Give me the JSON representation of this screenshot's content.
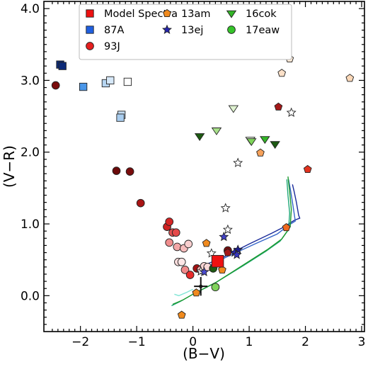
{
  "chart_data": {
    "type": "scatter",
    "xlabel": "(B−V)",
    "ylabel": "(V−R)",
    "xlim": [
      -2.65,
      3.05
    ],
    "ylim": [
      -0.5,
      4.1
    ],
    "xticks": [
      -2,
      -1,
      0,
      1,
      2,
      3
    ],
    "xtick_labels": [
      "−2",
      "−1",
      "0",
      "1",
      "2",
      "3"
    ],
    "yticks": [
      0.0,
      1.0,
      2.0,
      3.0,
      4.0
    ],
    "ytick_labels": [
      "0.0",
      "1.0",
      "2.0",
      "3.0",
      "4.0"
    ],
    "grid": false,
    "legend_position": "top-center",
    "legend": [
      {
        "label": "Model Spectra",
        "marker": "square",
        "color": "#ee1111"
      },
      {
        "label": "13am",
        "marker": "pentagon",
        "color": "#f08a1e"
      },
      {
        "label": "16cok",
        "marker": "triangle-down",
        "color": "#33b527"
      },
      {
        "label": "87A",
        "marker": "square",
        "color": "#1f5fe0"
      },
      {
        "label": "13ej",
        "marker": "star",
        "color": "#2424b0"
      },
      {
        "label": "17eaw",
        "marker": "circle",
        "color": "#35c42a"
      },
      {
        "label": "93J",
        "marker": "circle",
        "color": "#e51f1f"
      }
    ],
    "series": [
      {
        "name": "87A",
        "marker": "square",
        "points": [
          {
            "x": -2.36,
            "y": 3.22,
            "color": "#0c2a78"
          },
          {
            "x": -2.32,
            "y": 3.2,
            "color": "#0c2a78"
          },
          {
            "x": -1.95,
            "y": 2.91,
            "color": "#4a96e8"
          },
          {
            "x": -1.55,
            "y": 2.96,
            "color": "#b7d6f2"
          },
          {
            "x": -1.47,
            "y": 3.0,
            "color": "#d6e8f8"
          },
          {
            "x": -1.16,
            "y": 2.98,
            "color": "#ffffff"
          },
          {
            "x": -1.27,
            "y": 2.52,
            "color": "#c4dcf2"
          },
          {
            "x": -1.29,
            "y": 2.48,
            "color": "#a9cdef"
          }
        ]
      },
      {
        "name": "93J",
        "marker": "circle",
        "points": [
          {
            "x": -2.44,
            "y": 2.93,
            "color": "#7a0c0c"
          },
          {
            "x": -1.36,
            "y": 1.74,
            "color": "#6b0a0a"
          },
          {
            "x": -1.12,
            "y": 1.73,
            "color": "#7a0c0c"
          },
          {
            "x": -0.93,
            "y": 1.29,
            "color": "#a91414"
          },
          {
            "x": -0.46,
            "y": 0.96,
            "color": "#cf2222"
          },
          {
            "x": -0.42,
            "y": 1.03,
            "color": "#d62525"
          },
          {
            "x": -0.36,
            "y": 0.88,
            "color": "#e05050"
          },
          {
            "x": -0.3,
            "y": 0.88,
            "color": "#e54a4a"
          },
          {
            "x": -0.42,
            "y": 0.74,
            "color": "#ef8c8c"
          },
          {
            "x": -0.28,
            "y": 0.68,
            "color": "#f2a7a7"
          },
          {
            "x": -0.16,
            "y": 0.66,
            "color": "#f5bcbc"
          },
          {
            "x": -0.08,
            "y": 0.72,
            "color": "#f8cfcf"
          },
          {
            "x": -0.26,
            "y": 0.47,
            "color": "#fbdcdc"
          },
          {
            "x": -0.2,
            "y": 0.47,
            "color": "#fde6e6"
          },
          {
            "x": -0.14,
            "y": 0.36,
            "color": "#f08a8a"
          },
          {
            "x": -0.05,
            "y": 0.29,
            "color": "#e82a2a"
          },
          {
            "x": 0.07,
            "y": 0.38,
            "color": "#a31313"
          },
          {
            "x": 0.14,
            "y": 0.36,
            "color": "#f4b2b2"
          },
          {
            "x": 0.2,
            "y": 0.41,
            "color": "#f9d4d4"
          },
          {
            "x": 0.26,
            "y": 0.4,
            "color": "#f9d9d9"
          },
          {
            "x": 0.62,
            "y": 0.63,
            "color": "#7e0d0d"
          }
        ]
      },
      {
        "name": "13am",
        "marker": "pentagon",
        "points": [
          {
            "x": -0.2,
            "y": -0.27,
            "color": "#f08a1e"
          },
          {
            "x": 0.06,
            "y": 0.04,
            "color": "#f08a1e"
          },
          {
            "x": 0.24,
            "y": 0.73,
            "color": "#f08a1e"
          },
          {
            "x": 0.52,
            "y": 0.36,
            "color": "#f08a1e"
          },
          {
            "x": 0.62,
            "y": 0.6,
            "color": "#a41818"
          },
          {
            "x": 1.2,
            "y": 1.99,
            "color": "#f6a15a"
          },
          {
            "x": 1.52,
            "y": 2.63,
            "color": "#a41818"
          },
          {
            "x": 1.58,
            "y": 3.1,
            "color": "#fbe0c8"
          },
          {
            "x": 1.72,
            "y": 3.3,
            "color": "#fde9d6"
          },
          {
            "x": 1.66,
            "y": 0.95,
            "color": "#f0681e"
          },
          {
            "x": 2.04,
            "y": 1.76,
            "color": "#e2321e"
          },
          {
            "x": 2.79,
            "y": 3.03,
            "color": "#fbd8b8"
          }
        ]
      },
      {
        "name": "13ej",
        "marker": "star",
        "points": [
          {
            "x": -1.18,
            "y": 3.37,
            "color": "#ffffff"
          },
          {
            "x": 0.14,
            "y": 0.34,
            "color": "#ffffff"
          },
          {
            "x": 0.2,
            "y": 0.33,
            "color": "#4a4ad0"
          },
          {
            "x": 0.33,
            "y": 0.59,
            "color": "#ffffff"
          },
          {
            "x": 0.55,
            "y": 0.82,
            "color": "#4242c8"
          },
          {
            "x": 0.58,
            "y": 1.22,
            "color": "#ffffff"
          },
          {
            "x": 0.62,
            "y": 0.92,
            "color": "#ffffff"
          },
          {
            "x": 0.74,
            "y": 0.6,
            "color": "#2a2ab0"
          },
          {
            "x": 0.8,
            "y": 0.64,
            "color": "#1d1d90"
          },
          {
            "x": 0.78,
            "y": 0.57,
            "color": "#3535c0"
          },
          {
            "x": 0.8,
            "y": 1.85,
            "color": "#ffffff"
          },
          {
            "x": 1.75,
            "y": 2.55,
            "color": "#ffffff"
          }
        ]
      },
      {
        "name": "16cok",
        "marker": "triangle-down",
        "points": [
          {
            "x": 0.12,
            "y": 2.22,
            "color": "#1d5a12"
          },
          {
            "x": 0.42,
            "y": 2.3,
            "color": "#a8e08a"
          },
          {
            "x": 0.72,
            "y": 2.61,
            "color": "#dff2d0"
          },
          {
            "x": 1.02,
            "y": 2.17,
            "color": "#e8f7df"
          },
          {
            "x": 1.04,
            "y": 2.15,
            "color": "#7ed45a"
          },
          {
            "x": 1.28,
            "y": 2.18,
            "color": "#33b527"
          },
          {
            "x": 1.46,
            "y": 2.11,
            "color": "#1d5a12"
          }
        ]
      },
      {
        "name": "17eaw",
        "marker": "circle",
        "points": [
          {
            "x": 0.4,
            "y": 0.12,
            "color": "#7ed45a"
          },
          {
            "x": 0.36,
            "y": 0.38,
            "color": "#1d5a12"
          }
        ]
      },
      {
        "name": "Model Spectra",
        "marker": "square",
        "points": [
          {
            "x": 0.44,
            "y": 0.48,
            "color": "#ee1111"
          }
        ]
      }
    ],
    "error_point": {
      "x": 0.14,
      "y": 0.13,
      "xerr": 0.12,
      "yerr": 0.13,
      "color": "#111111"
    },
    "lines": [
      {
        "color": "#1a2a9a",
        "points": [
          [
            0.02,
            0.37
          ],
          [
            0.5,
            0.52
          ],
          [
            1.0,
            0.72
          ],
          [
            1.4,
            0.87
          ],
          [
            1.6,
            0.95
          ],
          [
            1.8,
            1.05
          ],
          [
            1.9,
            1.08
          ],
          [
            1.88,
            1.12
          ],
          [
            1.84,
            1.3
          ],
          [
            1.8,
            1.45
          ],
          [
            1.77,
            1.55
          ]
        ]
      },
      {
        "color": "#3565c8",
        "points": [
          [
            0.08,
            0.34
          ],
          [
            0.6,
            0.54
          ],
          [
            1.1,
            0.72
          ],
          [
            1.5,
            0.86
          ],
          [
            1.7,
            0.98
          ],
          [
            1.82,
            1.04
          ],
          [
            1.78,
            1.25
          ],
          [
            1.74,
            1.45
          ],
          [
            1.7,
            1.62
          ]
        ]
      },
      {
        "color": "#20a878",
        "points": [
          [
            -0.38,
            -0.14
          ],
          [
            -0.2,
            -0.07
          ],
          [
            0.0,
            0.02
          ],
          [
            0.4,
            0.18
          ],
          [
            0.9,
            0.42
          ],
          [
            1.3,
            0.62
          ],
          [
            1.55,
            0.76
          ],
          [
            1.7,
            0.92
          ],
          [
            1.72,
            1.15
          ],
          [
            1.69,
            1.4
          ],
          [
            1.67,
            1.62
          ]
        ]
      },
      {
        "color": "#1b9a2e",
        "points": [
          [
            -0.36,
            -0.12
          ],
          [
            -0.18,
            -0.06
          ],
          [
            0.02,
            0.03
          ],
          [
            0.42,
            0.19
          ],
          [
            0.92,
            0.44
          ],
          [
            1.32,
            0.64
          ],
          [
            1.58,
            0.79
          ],
          [
            1.73,
            0.96
          ],
          [
            1.75,
            1.2
          ],
          [
            1.72,
            1.45
          ],
          [
            1.69,
            1.66
          ]
        ]
      },
      {
        "color": "#82e6d6",
        "points": [
          [
            -0.33,
            0.02
          ],
          [
            -0.25,
            0.0
          ],
          [
            -0.1,
            0.05
          ],
          [
            0.0,
            0.09
          ]
        ]
      }
    ]
  }
}
